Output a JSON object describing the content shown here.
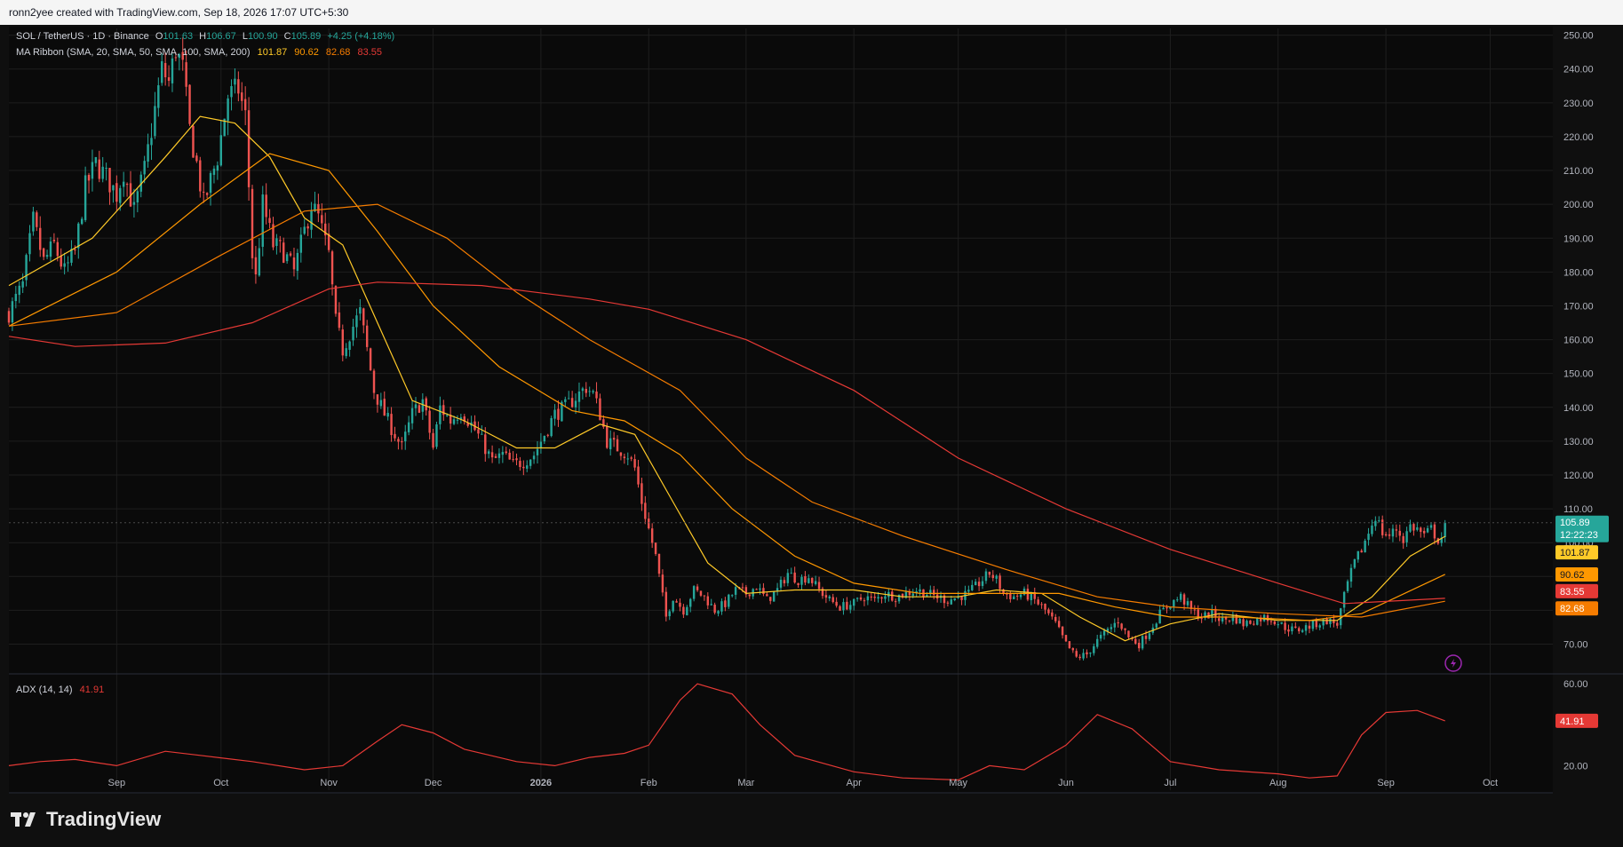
{
  "header": {
    "caption": "ronn2yee created with TradingView.com, Sep 18, 2026 17:07 UTC+5:30"
  },
  "legend": {
    "symbol": "SOL / TetherUS · 1D · Binance",
    "open_label": "O",
    "open": "101.63",
    "high_label": "H",
    "high": "106.67",
    "low_label": "L",
    "low": "100.90",
    "close_label": "C",
    "close": "105.89",
    "change": "+4.25 (+4.18%)",
    "ma_title": "MA Ribbon (SMA, 20, SMA, 50, SMA, 100, SMA, 200)",
    "ma_values": [
      "101.87",
      "90.62",
      "82.68",
      "83.55"
    ],
    "adx_title": "ADX (14, 14)",
    "adx_value": "41.91"
  },
  "colors": {
    "background": "#0f0f0f",
    "up": "#26a69a",
    "down": "#ef5350",
    "ma20": "#ffca28",
    "ma50": "#ff9800",
    "ma100": "#f57c00",
    "ma200": "#e53935",
    "adx": "#e53935",
    "grid": "#1e1e1e"
  },
  "price_labels": {
    "last": "105.89",
    "countdown": "12:22:23",
    "ma20": "101.87",
    "ma50": "90.62",
    "ma200": "83.55",
    "ma100": "82.68",
    "adx": "41.91"
  },
  "chart_data": {
    "type": "candlestick",
    "symbol": "SOL / TetherUS",
    "interval": "1D",
    "exchange": "Binance",
    "x_range": [
      "2025-08-01",
      "2026-10-19"
    ],
    "price_ylim": [
      62,
      252
    ],
    "price_ticks": [
      250,
      240,
      230,
      220,
      210,
      200,
      190,
      180,
      170,
      160,
      150,
      140,
      130,
      120,
      110,
      100,
      90,
      80,
      70
    ],
    "x_ticks": [
      {
        "date": "2025-09-01",
        "label": "Sep"
      },
      {
        "date": "2025-10-01",
        "label": "Oct"
      },
      {
        "date": "2025-11-01",
        "label": "Nov"
      },
      {
        "date": "2025-12-01",
        "label": "Dec"
      },
      {
        "date": "2026-01-01",
        "label": "2026"
      },
      {
        "date": "2026-02-01",
        "label": "Feb"
      },
      {
        "date": "2026-03-01",
        "label": "Mar"
      },
      {
        "date": "2026-04-01",
        "label": "Apr"
      },
      {
        "date": "2026-05-01",
        "label": "May"
      },
      {
        "date": "2026-06-01",
        "label": "Jun"
      },
      {
        "date": "2026-07-01",
        "label": "Jul"
      },
      {
        "date": "2026-08-01",
        "label": "Aug"
      },
      {
        "date": "2026-09-01",
        "label": "Sep"
      },
      {
        "date": "2026-10-01",
        "label": "Oct"
      }
    ],
    "close_path": [
      [
        "2025-08-01",
        168
      ],
      [
        "2025-08-05",
        176
      ],
      [
        "2025-08-08",
        195
      ],
      [
        "2025-08-11",
        183
      ],
      [
        "2025-08-14",
        188
      ],
      [
        "2025-08-17",
        180
      ],
      [
        "2025-08-20",
        186
      ],
      [
        "2025-08-23",
        205
      ],
      [
        "2025-08-26",
        212
      ],
      [
        "2025-08-29",
        208
      ],
      [
        "2025-09-01",
        203
      ],
      [
        "2025-09-03",
        210
      ],
      [
        "2025-09-06",
        198
      ],
      [
        "2025-09-09",
        210
      ],
      [
        "2025-09-12",
        228
      ],
      [
        "2025-09-14",
        240
      ],
      [
        "2025-09-16",
        236
      ],
      [
        "2025-09-18",
        246
      ],
      [
        "2025-09-20",
        240
      ],
      [
        "2025-09-22",
        222
      ],
      [
        "2025-09-24",
        212
      ],
      [
        "2025-09-26",
        200
      ],
      [
        "2025-09-28",
        207
      ],
      [
        "2025-09-30",
        214
      ],
      [
        "2025-10-03",
        232
      ],
      [
        "2025-10-06",
        234
      ],
      [
        "2025-10-08",
        226
      ],
      [
        "2025-10-10",
        185
      ],
      [
        "2025-10-11",
        178
      ],
      [
        "2025-10-13",
        200
      ],
      [
        "2025-10-16",
        188
      ],
      [
        "2025-10-19",
        186
      ],
      [
        "2025-10-22",
        180
      ],
      [
        "2025-10-25",
        192
      ],
      [
        "2025-10-27",
        200
      ],
      [
        "2025-10-29",
        196
      ],
      [
        "2025-11-01",
        185
      ],
      [
        "2025-11-03",
        165
      ],
      [
        "2025-11-05",
        157
      ],
      [
        "2025-11-07",
        162
      ],
      [
        "2025-11-10",
        168
      ],
      [
        "2025-11-12",
        157
      ],
      [
        "2025-11-14",
        145
      ],
      [
        "2025-11-17",
        138
      ],
      [
        "2025-11-20",
        132
      ],
      [
        "2025-11-22",
        128
      ],
      [
        "2025-11-25",
        138
      ],
      [
        "2025-11-28",
        142
      ],
      [
        "2025-12-01",
        128
      ],
      [
        "2025-12-03",
        140
      ],
      [
        "2025-12-06",
        136
      ],
      [
        "2025-12-09",
        139
      ],
      [
        "2025-12-12",
        135
      ],
      [
        "2025-12-15",
        130
      ],
      [
        "2025-12-18",
        124
      ],
      [
        "2025-12-21",
        126
      ],
      [
        "2025-12-24",
        123
      ],
      [
        "2025-12-27",
        124
      ],
      [
        "2025-12-30",
        126
      ],
      [
        "2026-01-02",
        132
      ],
      [
        "2026-01-05",
        138
      ],
      [
        "2026-01-08",
        140
      ],
      [
        "2026-01-11",
        143
      ],
      [
        "2026-01-14",
        146
      ],
      [
        "2026-01-16",
        144
      ],
      [
        "2026-01-18",
        138
      ],
      [
        "2026-01-20",
        130
      ],
      [
        "2026-01-23",
        128
      ],
      [
        "2026-01-26",
        126
      ],
      [
        "2026-01-28",
        122
      ],
      [
        "2026-01-30",
        112
      ],
      [
        "2026-02-01",
        104
      ],
      [
        "2026-02-03",
        96
      ],
      [
        "2026-02-05",
        84
      ],
      [
        "2026-02-06",
        78
      ],
      [
        "2026-02-08",
        84
      ],
      [
        "2026-02-11",
        80
      ],
      [
        "2026-02-14",
        86
      ],
      [
        "2026-02-17",
        84
      ],
      [
        "2026-02-20",
        80
      ],
      [
        "2026-02-23",
        82
      ],
      [
        "2026-02-26",
        86
      ],
      [
        "2026-03-01",
        85
      ],
      [
        "2026-03-04",
        87
      ],
      [
        "2026-03-07",
        83
      ],
      [
        "2026-03-10",
        86
      ],
      [
        "2026-03-13",
        91
      ],
      [
        "2026-03-16",
        89
      ],
      [
        "2026-03-19",
        90
      ],
      [
        "2026-03-22",
        86
      ],
      [
        "2026-03-25",
        83
      ],
      [
        "2026-03-28",
        81
      ],
      [
        "2026-04-01",
        82
      ],
      [
        "2026-04-04",
        84
      ],
      [
        "2026-04-07",
        83
      ],
      [
        "2026-04-10",
        85
      ],
      [
        "2026-04-13",
        84
      ],
      [
        "2026-04-16",
        85
      ],
      [
        "2026-04-19",
        86
      ],
      [
        "2026-04-22",
        85
      ],
      [
        "2026-04-25",
        84
      ],
      [
        "2026-04-28",
        83
      ],
      [
        "2026-05-01",
        84
      ],
      [
        "2026-05-04",
        85
      ],
      [
        "2026-05-07",
        88
      ],
      [
        "2026-05-10",
        91
      ],
      [
        "2026-05-12",
        89
      ],
      [
        "2026-05-14",
        85
      ],
      [
        "2026-05-17",
        84
      ],
      [
        "2026-05-20",
        85
      ],
      [
        "2026-05-23",
        83
      ],
      [
        "2026-05-26",
        80
      ],
      [
        "2026-05-29",
        76
      ],
      [
        "2026-06-01",
        70
      ],
      [
        "2026-06-04",
        66
      ],
      [
        "2026-06-07",
        67
      ],
      [
        "2026-06-10",
        71
      ],
      [
        "2026-06-13",
        74
      ],
      [
        "2026-06-16",
        77
      ],
      [
        "2026-06-19",
        72
      ],
      [
        "2026-06-22",
        70
      ],
      [
        "2026-06-25",
        74
      ],
      [
        "2026-06-28",
        79
      ],
      [
        "2026-07-01",
        82
      ],
      [
        "2026-07-04",
        84
      ],
      [
        "2026-07-07",
        80
      ],
      [
        "2026-07-10",
        78
      ],
      [
        "2026-07-13",
        79
      ],
      [
        "2026-07-16",
        77
      ],
      [
        "2026-07-19",
        78
      ],
      [
        "2026-07-22",
        76
      ],
      [
        "2026-07-25",
        77
      ],
      [
        "2026-07-28",
        78
      ],
      [
        "2026-07-31",
        77
      ],
      [
        "2026-08-03",
        75
      ],
      [
        "2026-08-06",
        74
      ],
      [
        "2026-08-09",
        75
      ],
      [
        "2026-08-12",
        76
      ],
      [
        "2026-08-15",
        77
      ],
      [
        "2026-08-18",
        76
      ],
      [
        "2026-08-19",
        80
      ],
      [
        "2026-08-21",
        88
      ],
      [
        "2026-08-23",
        94
      ],
      [
        "2026-08-25",
        98
      ],
      [
        "2026-08-27",
        103
      ],
      [
        "2026-08-29",
        108
      ],
      [
        "2026-08-31",
        103
      ],
      [
        "2026-09-02",
        102
      ],
      [
        "2026-09-04",
        104
      ],
      [
        "2026-09-06",
        101
      ],
      [
        "2026-09-08",
        105
      ],
      [
        "2026-09-10",
        104
      ],
      [
        "2026-09-12",
        102
      ],
      [
        "2026-09-14",
        104
      ],
      [
        "2026-09-16",
        101
      ],
      [
        "2026-09-17",
        101.63
      ],
      [
        "2026-09-18",
        105.89
      ]
    ],
    "ma_series": [
      {
        "name": "SMA 20",
        "color": "#ffca28",
        "points": [
          [
            "2025-08-01",
            176
          ],
          [
            "2025-08-25",
            190
          ],
          [
            "2025-09-15",
            214
          ],
          [
            "2025-09-25",
            226
          ],
          [
            "2025-10-05",
            224
          ],
          [
            "2025-10-15",
            214
          ],
          [
            "2025-10-25",
            196
          ],
          [
            "2025-11-05",
            188
          ],
          [
            "2025-11-15",
            165
          ],
          [
            "2025-11-25",
            142
          ],
          [
            "2025-12-10",
            136
          ],
          [
            "2025-12-25",
            128
          ],
          [
            "2026-01-05",
            128
          ],
          [
            "2026-01-18",
            135
          ],
          [
            "2026-01-28",
            132
          ],
          [
            "2026-02-08",
            112
          ],
          [
            "2026-02-18",
            94
          ],
          [
            "2026-03-01",
            85
          ],
          [
            "2026-03-15",
            86
          ],
          [
            "2026-04-01",
            86
          ],
          [
            "2026-04-15",
            84
          ],
          [
            "2026-05-01",
            84
          ],
          [
            "2026-05-12",
            86
          ],
          [
            "2026-05-25",
            85
          ],
          [
            "2026-06-05",
            78
          ],
          [
            "2026-06-18",
            71
          ],
          [
            "2026-07-01",
            76
          ],
          [
            "2026-07-15",
            79
          ],
          [
            "2026-08-01",
            77
          ],
          [
            "2026-08-18",
            77
          ],
          [
            "2026-08-28",
            84
          ],
          [
            "2026-09-08",
            96
          ],
          [
            "2026-09-18",
            101.87
          ]
        ]
      },
      {
        "name": "SMA 50",
        "color": "#ff9800",
        "points": [
          [
            "2025-08-01",
            164
          ],
          [
            "2025-09-01",
            180
          ],
          [
            "2025-09-25",
            200
          ],
          [
            "2025-10-15",
            215
          ],
          [
            "2025-11-01",
            210
          ],
          [
            "2025-11-15",
            192
          ],
          [
            "2025-12-01",
            170
          ],
          [
            "2025-12-20",
            152
          ],
          [
            "2026-01-10",
            139
          ],
          [
            "2026-01-25",
            136
          ],
          [
            "2026-02-10",
            126
          ],
          [
            "2026-02-25",
            110
          ],
          [
            "2026-03-15",
            96
          ],
          [
            "2026-04-01",
            88
          ],
          [
            "2026-04-20",
            85
          ],
          [
            "2026-05-10",
            85
          ],
          [
            "2026-05-30",
            85
          ],
          [
            "2026-06-15",
            81
          ],
          [
            "2026-07-01",
            78
          ],
          [
            "2026-07-20",
            78
          ],
          [
            "2026-08-10",
            77
          ],
          [
            "2026-08-25",
            79
          ],
          [
            "2026-09-18",
            90.62
          ]
        ]
      },
      {
        "name": "SMA 100",
        "color": "#f57c00",
        "points": [
          [
            "2025-08-01",
            164
          ],
          [
            "2025-09-01",
            168
          ],
          [
            "2025-10-01",
            185
          ],
          [
            "2025-10-25",
            198
          ],
          [
            "2025-11-15",
            200
          ],
          [
            "2025-12-05",
            190
          ],
          [
            "2025-12-25",
            174
          ],
          [
            "2026-01-15",
            160
          ],
          [
            "2026-02-10",
            145
          ],
          [
            "2026-03-01",
            125
          ],
          [
            "2026-03-20",
            112
          ],
          [
            "2026-04-15",
            102
          ],
          [
            "2026-05-15",
            92
          ],
          [
            "2026-06-10",
            84
          ],
          [
            "2026-07-01",
            81
          ],
          [
            "2026-08-01",
            79
          ],
          [
            "2026-08-25",
            78
          ],
          [
            "2026-09-18",
            82.68
          ]
        ]
      },
      {
        "name": "SMA 200",
        "color": "#e53935",
        "points": [
          [
            "2025-08-01",
            161
          ],
          [
            "2025-08-20",
            158
          ],
          [
            "2025-09-15",
            159
          ],
          [
            "2025-10-10",
            165
          ],
          [
            "2025-11-01",
            175
          ],
          [
            "2025-11-15",
            177
          ],
          [
            "2025-12-15",
            176
          ],
          [
            "2026-01-15",
            172
          ],
          [
            "2026-02-01",
            169
          ],
          [
            "2026-03-01",
            160
          ],
          [
            "2026-04-01",
            145
          ],
          [
            "2026-05-01",
            125
          ],
          [
            "2026-06-01",
            110
          ],
          [
            "2026-07-01",
            98
          ],
          [
            "2026-08-01",
            88
          ],
          [
            "2026-08-20",
            82
          ],
          [
            "2026-09-18",
            83.55
          ]
        ]
      }
    ],
    "adx": {
      "name": "ADX (14, 14)",
      "ylim": [
        8,
        64
      ],
      "ticks": [
        60,
        20
      ],
      "points": [
        [
          "2025-08-01",
          20
        ],
        [
          "2025-08-10",
          22
        ],
        [
          "2025-08-20",
          23
        ],
        [
          "2025-09-01",
          20
        ],
        [
          "2025-09-15",
          27
        ],
        [
          "2025-09-25",
          25
        ],
        [
          "2025-10-10",
          22
        ],
        [
          "2025-10-25",
          18
        ],
        [
          "2025-11-05",
          20
        ],
        [
          "2025-11-15",
          32
        ],
        [
          "2025-11-22",
          40
        ],
        [
          "2025-12-01",
          36
        ],
        [
          "2025-12-10",
          28
        ],
        [
          "2025-12-25",
          22
        ],
        [
          "2026-01-05",
          20
        ],
        [
          "2026-01-15",
          24
        ],
        [
          "2026-01-25",
          26
        ],
        [
          "2026-02-01",
          30
        ],
        [
          "2026-02-10",
          52
        ],
        [
          "2026-02-15",
          60
        ],
        [
          "2026-02-25",
          55
        ],
        [
          "2026-03-05",
          40
        ],
        [
          "2026-03-15",
          25
        ],
        [
          "2026-04-01",
          17
        ],
        [
          "2026-04-15",
          14
        ],
        [
          "2026-05-01",
          13
        ],
        [
          "2026-05-10",
          20
        ],
        [
          "2026-05-20",
          18
        ],
        [
          "2026-06-01",
          30
        ],
        [
          "2026-06-10",
          45
        ],
        [
          "2026-06-20",
          38
        ],
        [
          "2026-07-01",
          22
        ],
        [
          "2026-07-15",
          18
        ],
        [
          "2026-08-01",
          16
        ],
        [
          "2026-08-10",
          14
        ],
        [
          "2026-08-18",
          15
        ],
        [
          "2026-08-25",
          35
        ],
        [
          "2026-09-01",
          46
        ],
        [
          "2026-09-10",
          47
        ],
        [
          "2026-09-18",
          41.91
        ]
      ]
    }
  },
  "branding": {
    "logo_text": "TradingView"
  }
}
